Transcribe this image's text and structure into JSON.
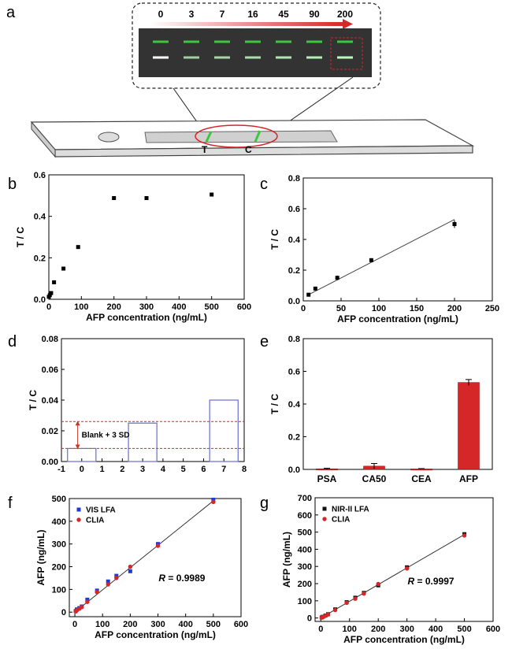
{
  "panel_labels": [
    "a",
    "b",
    "c",
    "d",
    "e",
    "f",
    "g"
  ],
  "panel_a": {
    "concentrations": [
      "0",
      "3",
      "7",
      "16",
      "45",
      "90",
      "200"
    ],
    "strip_labels": [
      "T",
      "C"
    ],
    "colors": {
      "control_line": "#3fc63f",
      "test_line": "#ffffff",
      "strip_bg": "#333333",
      "highlight": "#d62728"
    }
  },
  "chart_data": [
    {
      "panel": "b",
      "type": "scatter",
      "xlabel": "AFP concentration (ng/mL)",
      "ylabel": "T / C",
      "xlim": [
        0,
        600
      ],
      "ylim": [
        0,
        0.6
      ],
      "xticks": [
        0,
        100,
        200,
        300,
        400,
        500,
        600
      ],
      "yticks": [
        0.0,
        0.2,
        0.4,
        0.6
      ],
      "x": [
        0,
        3,
        7,
        16,
        45,
        90,
        200,
        300,
        500
      ],
      "y": [
        0.012,
        0.02,
        0.03,
        0.082,
        0.148,
        0.252,
        0.488,
        0.488,
        0.505
      ]
    },
    {
      "panel": "c",
      "type": "scatter",
      "xlabel": "AFP concentration (ng/mL)",
      "ylabel": "T / C",
      "xlim": [
        0,
        250
      ],
      "ylim": [
        0,
        0.8
      ],
      "xticks": [
        0,
        50,
        100,
        150,
        200,
        250
      ],
      "yticks": [
        0.0,
        0.2,
        0.4,
        0.6,
        0.8
      ],
      "x": [
        7,
        16,
        45,
        90,
        200
      ],
      "y": [
        0.04,
        0.08,
        0.15,
        0.265,
        0.5
      ],
      "err": [
        0.005,
        0.005,
        0.015,
        0.01,
        0.025
      ],
      "fit": {
        "x": [
          7,
          200
        ],
        "y": [
          0.04,
          0.53
        ]
      }
    },
    {
      "panel": "d",
      "type": "bar",
      "ylabel": "T / C",
      "xlim": [
        -1,
        8
      ],
      "ylim": [
        0,
        0.08
      ],
      "xticks": [
        -1,
        0,
        1,
        2,
        3,
        4,
        5,
        6,
        7,
        8
      ],
      "yticks": [
        0.0,
        0.02,
        0.04,
        0.06,
        0.08
      ],
      "x": [
        0,
        3,
        7
      ],
      "values": [
        0.0085,
        0.025,
        0.04
      ],
      "bar_width": 1.4,
      "ref_lines": [
        0.0085,
        0.026
      ],
      "annotation": "Blank + 3 SD"
    },
    {
      "panel": "e",
      "type": "bar",
      "ylabel": "T / C",
      "ylim": [
        0,
        0.8
      ],
      "yticks": [
        0.0,
        0.2,
        0.4,
        0.6,
        0.8
      ],
      "categories": [
        "PSA",
        "CA50",
        "CEA",
        "AFP"
      ],
      "values": [
        0.004,
        0.02,
        0.003,
        0.532
      ],
      "err": [
        0.003,
        0.016,
        0.002,
        0.018
      ]
    },
    {
      "panel": "f",
      "type": "scatter",
      "xlabel": "AFP concentration (ng/mL)",
      "ylabel": "AFP (ng/mL)",
      "xlim": [
        -20,
        600
      ],
      "ylim": [
        -20,
        500
      ],
      "xticks": [
        0,
        100,
        200,
        300,
        400,
        500,
        600
      ],
      "yticks": [
        0,
        100,
        200,
        300,
        400,
        500
      ],
      "series": [
        {
          "name": "VIS LFA",
          "marker": "square",
          "color": "#1f3bd6",
          "x": [
            3,
            7,
            16,
            25,
            45,
            80,
            120,
            150,
            200,
            300,
            500
          ],
          "y": [
            5,
            12,
            18,
            25,
            55,
            95,
            135,
            160,
            180,
            300,
            495
          ]
        },
        {
          "name": "CLIA",
          "marker": "circle",
          "color": "#d62728",
          "x": [
            3,
            7,
            16,
            25,
            45,
            80,
            120,
            150,
            200,
            300,
            500
          ],
          "y": [
            3,
            8,
            15,
            22,
            45,
            88,
            122,
            150,
            200,
            292,
            485
          ]
        }
      ],
      "fit": {
        "x": [
          0,
          500
        ],
        "y": [
          0,
          490
        ]
      },
      "annotation_label": "R",
      "annotation_value": " = 0.9989"
    },
    {
      "panel": "g",
      "type": "scatter",
      "xlabel": "AFP concentration (ng/mL)",
      "ylabel": "AFP (ng/mL)",
      "xlim": [
        -20,
        600
      ],
      "ylim": [
        -20,
        700
      ],
      "xticks": [
        0,
        100,
        200,
        300,
        400,
        500,
        600
      ],
      "yticks": [
        0,
        100,
        200,
        300,
        400,
        500,
        600,
        700
      ],
      "series": [
        {
          "name": "NIR-II LFA",
          "marker": "square",
          "color": "#111111",
          "x": [
            3,
            7,
            16,
            25,
            50,
            90,
            120,
            150,
            200,
            300,
            500
          ],
          "y": [
            3,
            7,
            14,
            22,
            50,
            92,
            118,
            146,
            190,
            295,
            488
          ]
        },
        {
          "name": "CLIA",
          "marker": "circle",
          "color": "#d62728",
          "x": [
            3,
            7,
            16,
            25,
            50,
            90,
            120,
            150,
            200,
            300,
            500
          ],
          "y": [
            2,
            6,
            12,
            20,
            46,
            88,
            112,
            142,
            198,
            288,
            480
          ]
        }
      ],
      "fit": {
        "x": [
          0,
          500
        ],
        "y": [
          0,
          486
        ]
      },
      "annotation_label": "R",
      "annotation_value": " = 0.9997"
    }
  ]
}
